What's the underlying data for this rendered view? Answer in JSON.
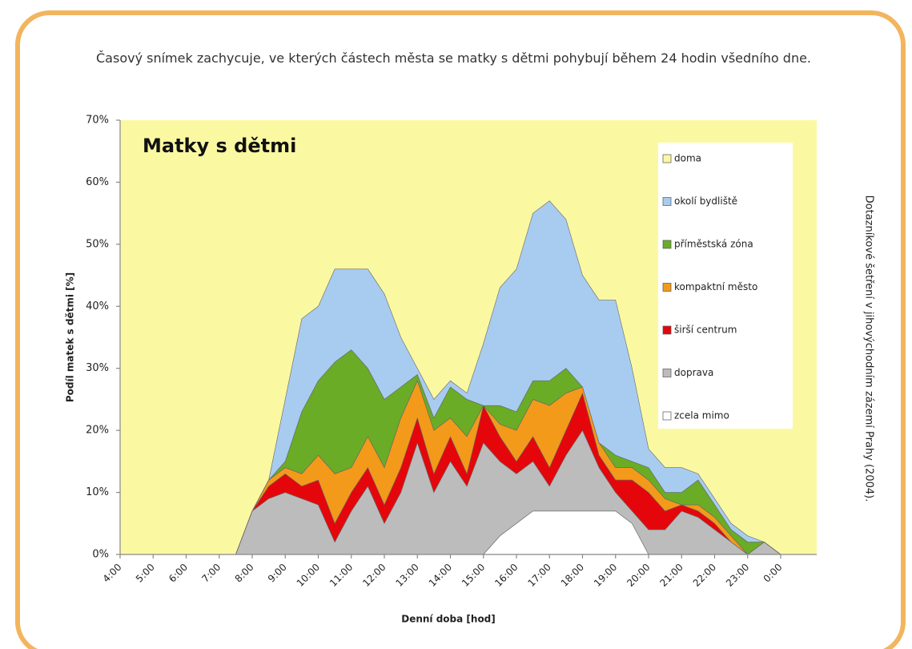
{
  "description": "Časový snímek zachycuje, ve kterých částech města se matky s dětmi pohybují během 24 hodin všedního dne.",
  "source": "Dotazníkové šetření v jihovýchodním zázemí Prahy (2004).",
  "chart_data": {
    "type": "stacked_area",
    "title": "Matky s dětmi",
    "x_label": "Denní doba [hod]",
    "y_label": "Podíl matek s dětmi [%]",
    "x": [
      7,
      7.5,
      8,
      8.5,
      9,
      9.5,
      10,
      10.5,
      11,
      11.5,
      12,
      12.5,
      13,
      13.5,
      14,
      14.5,
      15,
      15.5,
      16,
      16.5,
      17,
      17.5,
      18,
      18.5,
      19,
      19.5,
      20,
      20.5,
      21,
      21.5,
      22,
      22.5,
      23,
      23.5,
      24
    ],
    "series": [
      {
        "name": "doma",
        "color": "#fbf8a2"
      },
      {
        "name": "okolí bydliště",
        "color": "#a8ccf0",
        "values": [
          0,
          0,
          0,
          0,
          10,
          15,
          12,
          15,
          13,
          16,
          17,
          8,
          1,
          3,
          1,
          1,
          10,
          19,
          23,
          27,
          29,
          24,
          18,
          23,
          25,
          15,
          3,
          4,
          4,
          1,
          1,
          1,
          1,
          0,
          0
        ]
      },
      {
        "name": "příměstská zóna",
        "color": "#6aac26",
        "values": [
          0,
          0,
          0,
          0,
          1,
          10,
          12,
          18,
          19,
          11,
          11,
          5,
          1,
          2,
          5,
          6,
          0,
          3,
          3,
          3,
          4,
          4,
          0,
          0,
          2,
          1,
          2,
          1,
          2,
          4,
          2,
          1,
          2,
          0,
          0
        ]
      },
      {
        "name": "kompaktní město",
        "color": "#f39a1a",
        "values": [
          0,
          0,
          0,
          1,
          1,
          2,
          4,
          8,
          4,
          5,
          6,
          8,
          6,
          7,
          3,
          6,
          0,
          2,
          5,
          6,
          10,
          6,
          1,
          2,
          2,
          2,
          2,
          2,
          0,
          1,
          1,
          1,
          0,
          0,
          0
        ]
      },
      {
        "name": "širší centrum",
        "color": "#e5060b",
        "values": [
          0,
          0,
          0,
          2,
          3,
          2,
          4,
          3,
          3,
          3,
          3,
          4,
          4,
          3,
          4,
          2,
          6,
          4,
          2,
          4,
          3,
          4,
          6,
          2,
          2,
          5,
          6,
          3,
          1,
          1,
          1,
          0,
          0,
          0,
          0
        ]
      },
      {
        "name": "doprava",
        "color": "#bcbcbc",
        "values": [
          0,
          0,
          7,
          9,
          10,
          9,
          8,
          2,
          7,
          11,
          5,
          10,
          18,
          10,
          15,
          11,
          18,
          12,
          8,
          8,
          4,
          9,
          13,
          7,
          3,
          2,
          4,
          4,
          7,
          6,
          4,
          2,
          0,
          2,
          0
        ]
      },
      {
        "name": "zcela mimo",
        "color": "#ffffff",
        "values": [
          0,
          0,
          0,
          0,
          0,
          0,
          0,
          0,
          0,
          0,
          0,
          0,
          0,
          0,
          0,
          0,
          0,
          3,
          5,
          7,
          7,
          7,
          7,
          7,
          7,
          5,
          0,
          0,
          0,
          0,
          0,
          0,
          0,
          0,
          0
        ]
      }
    ],
    "xlim": [
      4,
      24
    ],
    "xticks": [
      {
        "value": 4,
        "label": "4:00"
      },
      {
        "value": 5,
        "label": "5:00"
      },
      {
        "value": 6,
        "label": "6:00"
      },
      {
        "value": 7,
        "label": "7:00"
      },
      {
        "value": 8,
        "label": "8:00"
      },
      {
        "value": 9,
        "label": "9:00"
      },
      {
        "value": 10,
        "label": "10:00"
      },
      {
        "value": 11,
        "label": "11:00"
      },
      {
        "value": 12,
        "label": "12:00"
      },
      {
        "value": 13,
        "label": "13:00"
      },
      {
        "value": 14,
        "label": "14:00"
      },
      {
        "value": 15,
        "label": "15:00"
      },
      {
        "value": 16,
        "label": "16:00"
      },
      {
        "value": 17,
        "label": "17:00"
      },
      {
        "value": 18,
        "label": "18:00"
      },
      {
        "value": 19,
        "label": "19:00"
      },
      {
        "value": 20,
        "label": "20:00"
      },
      {
        "value": 21,
        "label": "21:00"
      },
      {
        "value": 22,
        "label": "22:00"
      },
      {
        "value": 23,
        "label": "23:00"
      },
      {
        "value": 24,
        "label": "0:00"
      }
    ],
    "ylim": [
      0,
      70
    ],
    "yticks": [
      {
        "value": 0,
        "label": "0%"
      },
      {
        "value": 10,
        "label": "10%"
      },
      {
        "value": 20,
        "label": "20%"
      },
      {
        "value": 30,
        "label": "30%"
      },
      {
        "value": 40,
        "label": "40%"
      },
      {
        "value": 50,
        "label": "50%"
      },
      {
        "value": 60,
        "label": "60%"
      },
      {
        "value": 70,
        "label": "70%"
      }
    ]
  }
}
